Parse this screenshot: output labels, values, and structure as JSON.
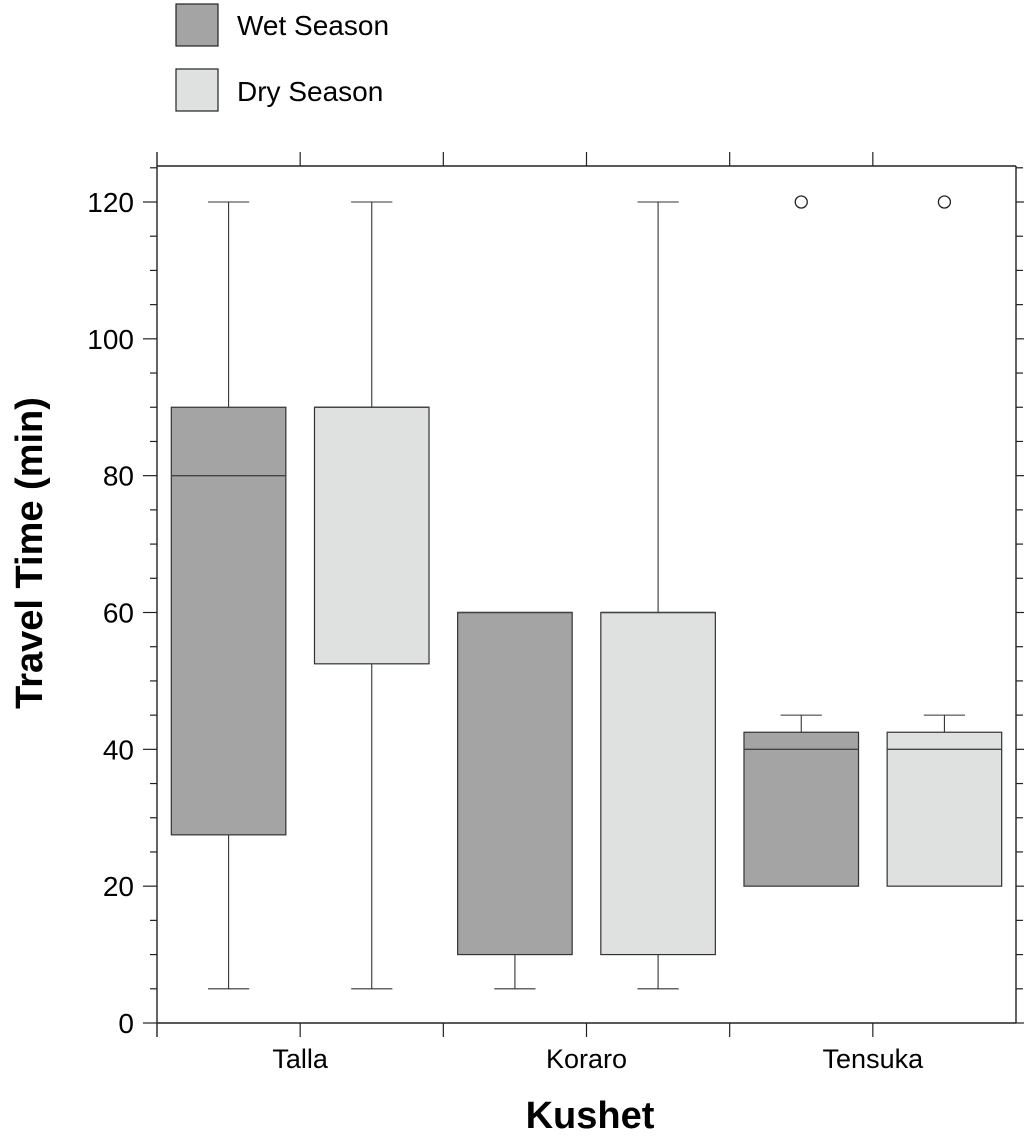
{
  "chart_data": {
    "type": "boxplot",
    "title": "",
    "xlabel": "Kushet",
    "ylabel": "Travel Time (min)",
    "ylim": [
      0,
      125
    ],
    "yticks": [
      0,
      20,
      40,
      60,
      80,
      100,
      120
    ],
    "categories": [
      "Talla",
      "Koraro",
      "Tensuka"
    ],
    "legend": {
      "placement": "top-left"
    },
    "series": [
      {
        "name": "Wet Season",
        "color": "#a4a4a4",
        "boxes": [
          {
            "category": "Talla",
            "whisker_low": 5,
            "q1": 27.5,
            "median": 80,
            "q3": 90,
            "whisker_high": 120,
            "outliers": []
          },
          {
            "category": "Koraro",
            "whisker_low": 5,
            "q1": 10,
            "median": 60,
            "q3": 60,
            "whisker_high": 60,
            "outliers": []
          },
          {
            "category": "Tensuka",
            "whisker_low": 20,
            "q1": 20,
            "median": 40,
            "q3": 42.5,
            "whisker_high": 45,
            "outliers": [
              120
            ]
          }
        ]
      },
      {
        "name": "Dry Season",
        "color": "#dfe0e0",
        "boxes": [
          {
            "category": "Talla",
            "whisker_low": 5,
            "q1": 52.5,
            "median": 90,
            "q3": 90,
            "whisker_high": 120,
            "outliers": []
          },
          {
            "category": "Koraro",
            "whisker_low": 5,
            "q1": 10,
            "median": 60,
            "q3": 60,
            "whisker_high": 120,
            "outliers": []
          },
          {
            "category": "Tensuka",
            "whisker_low": 20,
            "q1": 20,
            "median": 40,
            "q3": 42.5,
            "whisker_high": 45,
            "outliers": [
              120
            ]
          }
        ]
      }
    ]
  }
}
